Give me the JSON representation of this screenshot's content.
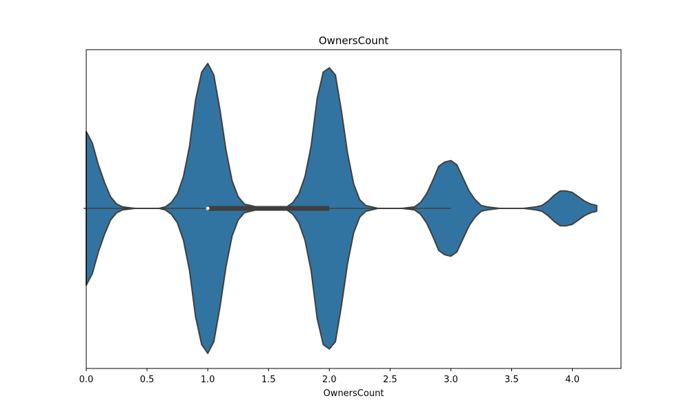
{
  "chart_data": {
    "type": "violin",
    "orientation": "horizontal",
    "title": "OwnersCount",
    "xlabel": "OwnersCount",
    "ylabel": "",
    "xlim": [
      0.0,
      4.4
    ],
    "xticks": [
      0.0,
      0.5,
      1.0,
      1.5,
      2.0,
      2.5,
      3.0,
      3.5,
      4.0
    ],
    "xtick_labels": [
      "0.0",
      "0.5",
      "1.0",
      "1.5",
      "2.0",
      "2.5",
      "3.0",
      "3.5",
      "4.0"
    ],
    "grid": false,
    "color": "#3274a1",
    "edge_color": "#3f3f3f",
    "density": {
      "x": [
        0.0,
        0.05,
        0.1,
        0.15,
        0.2,
        0.25,
        0.3,
        0.4,
        0.5,
        0.6,
        0.65,
        0.7,
        0.75,
        0.8,
        0.85,
        0.9,
        0.95,
        1.0,
        1.05,
        1.1,
        1.15,
        1.2,
        1.25,
        1.3,
        1.4,
        1.5,
        1.6,
        1.65,
        1.7,
        1.75,
        1.8,
        1.85,
        1.9,
        1.95,
        2.0,
        2.05,
        2.1,
        2.15,
        2.2,
        2.25,
        2.3,
        2.4,
        2.5,
        2.6,
        2.7,
        2.75,
        2.8,
        2.85,
        2.9,
        2.95,
        3.0,
        3.05,
        3.1,
        3.15,
        3.2,
        3.25,
        3.3,
        3.4,
        3.5,
        3.6,
        3.7,
        3.75,
        3.8,
        3.85,
        3.9,
        3.95,
        4.0,
        4.05,
        4.1,
        4.15,
        4.2
      ],
      "half_width": [
        0.53,
        0.45,
        0.3,
        0.18,
        0.08,
        0.03,
        0.01,
        0.0,
        0.0,
        0.0,
        0.01,
        0.04,
        0.1,
        0.22,
        0.43,
        0.75,
        0.94,
        1.0,
        0.92,
        0.68,
        0.4,
        0.19,
        0.08,
        0.03,
        0.01,
        0.0,
        0.0,
        0.01,
        0.04,
        0.1,
        0.22,
        0.43,
        0.76,
        0.94,
        0.97,
        0.92,
        0.67,
        0.38,
        0.17,
        0.06,
        0.02,
        0.0,
        0.0,
        0.0,
        0.01,
        0.04,
        0.1,
        0.19,
        0.29,
        0.32,
        0.33,
        0.3,
        0.21,
        0.12,
        0.06,
        0.02,
        0.01,
        0.0,
        0.0,
        0.0,
        0.01,
        0.02,
        0.05,
        0.09,
        0.12,
        0.12,
        0.11,
        0.08,
        0.05,
        0.03,
        0.02
      ]
    },
    "box": {
      "whisker_low": 0.0,
      "q1": 1.0,
      "median": 1.0,
      "q3": 2.0,
      "whisker_high": 3.0
    }
  }
}
